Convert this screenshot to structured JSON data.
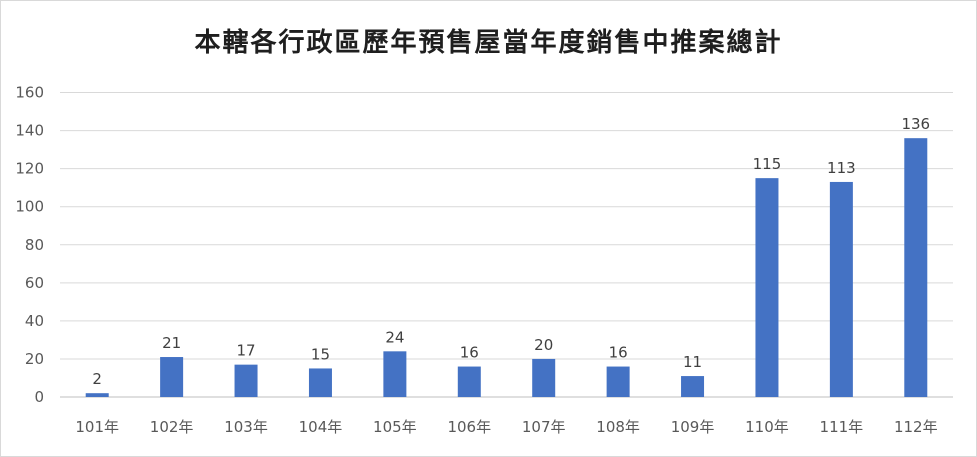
{
  "chart_data": {
    "type": "bar",
    "title": "本轄各行政區歷年預售屋當年度銷售中推案總計",
    "xlabel": "",
    "ylabel": "",
    "categories": [
      "101年",
      "102年",
      "103年",
      "104年",
      "105年",
      "106年",
      "107年",
      "108年",
      "109年",
      "110年",
      "111年",
      "112年"
    ],
    "values": [
      2,
      21,
      17,
      15,
      24,
      16,
      20,
      16,
      11,
      115,
      113,
      136
    ],
    "ylim": [
      0,
      160
    ],
    "yticks": [
      0,
      20,
      40,
      60,
      80,
      100,
      120,
      140,
      160
    ],
    "grid": true,
    "legend": "none",
    "data_labels": true,
    "colors": {
      "bar": "#4472c4",
      "grid": "#d9d9d9",
      "axis": "#bfbfbf"
    }
  }
}
